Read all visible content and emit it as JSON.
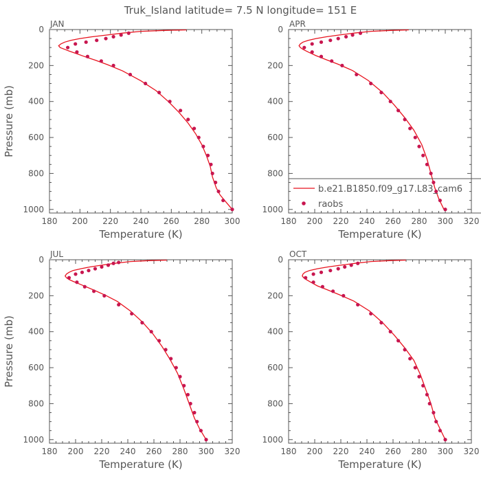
{
  "figure": {
    "title": "Truk_Island  latitude= 7.5 N longitude= 151 E"
  },
  "colors": {
    "model": "#e8121d",
    "obs": "#c8164f",
    "axis": "#555555",
    "text": "#555555",
    "background": "#ffffff"
  },
  "legend": {
    "model_label": "b.e21.B1850.f09_g17.L83_cam6",
    "obs_label": "raobs",
    "placement": "bottom-right of APR panel"
  },
  "chart_data": [
    {
      "type": "line",
      "panel": "JAN",
      "xlabel": "Temperature (K)",
      "ylabel": "Pressure (mb)",
      "xlim": [
        180,
        300
      ],
      "xticks": [
        180,
        200,
        220,
        240,
        260,
        280,
        300
      ],
      "ylim": [
        1020,
        0
      ],
      "yticks": [
        0,
        200,
        400,
        600,
        800,
        1000
      ],
      "grid": false,
      "series": [
        {
          "kind": "model",
          "points": [
            [
              270,
              2
            ],
            [
              255,
              5
            ],
            [
              240,
              10
            ],
            [
              228,
              20
            ],
            [
              218,
              30
            ],
            [
              208,
              40
            ],
            [
              200,
              50
            ],
            [
              194,
              60
            ],
            [
              190,
              70
            ],
            [
              187.5,
              80
            ],
            [
              186,
              90
            ],
            [
              187,
              100
            ],
            [
              190,
              110
            ],
            [
              193,
              120
            ],
            [
              198,
              135
            ],
            [
              203,
              150
            ],
            [
              210,
              170
            ],
            [
              218,
              195
            ],
            [
              228,
              230
            ],
            [
              240,
              285
            ],
            [
              250,
              340
            ],
            [
              258,
              400
            ],
            [
              265,
              460
            ],
            [
              271,
              520
            ],
            [
              276,
              580
            ],
            [
              280,
              640
            ],
            [
              283,
              700
            ],
            [
              285.5,
              760
            ],
            [
              287,
              820
            ],
            [
              289.5,
              880
            ],
            [
              292,
              920
            ],
            [
              296,
              960
            ],
            [
              300,
              1000
            ]
          ]
        },
        {
          "kind": "obs",
          "points": [
            [
              232,
              20
            ],
            [
              227,
              30
            ],
            [
              222,
              40
            ],
            [
              217,
              50
            ],
            [
              211,
              60
            ],
            [
              204,
              70
            ],
            [
              197,
              80
            ],
            [
              192,
              100
            ],
            [
              198,
              125
            ],
            [
              205,
              150
            ],
            [
              214,
              175
            ],
            [
              222,
              200
            ],
            [
              233,
              250
            ],
            [
              243,
              300
            ],
            [
              252,
              350
            ],
            [
              259,
              400
            ],
            [
              266,
              450
            ],
            [
              271,
              500
            ],
            [
              275,
              550
            ],
            [
              278,
              600
            ],
            [
              281,
              650
            ],
            [
              284,
              700
            ],
            [
              286,
              750
            ],
            [
              287,
              800
            ],
            [
              289,
              850
            ],
            [
              291,
              900
            ],
            [
              294,
              950
            ],
            [
              300,
              1000
            ]
          ]
        }
      ]
    },
    {
      "type": "line",
      "panel": "APR",
      "xlabel": "Temperature (K)",
      "ylabel": "",
      "xlim": [
        180,
        320
      ],
      "xticks": [
        180,
        200,
        220,
        240,
        260,
        280,
        300,
        320
      ],
      "ylim": [
        1020,
        0
      ],
      "yticks": [
        0,
        200,
        400,
        600,
        800,
        1000
      ],
      "grid": false,
      "series": [
        {
          "kind": "model",
          "points": [
            [
              272,
              2
            ],
            [
              258,
              5
            ],
            [
              243,
              10
            ],
            [
              230,
              20
            ],
            [
              219,
              30
            ],
            [
              209,
              40
            ],
            [
              201,
              50
            ],
            [
              195,
              60
            ],
            [
              191,
              70
            ],
            [
              189,
              80
            ],
            [
              188,
              90
            ],
            [
              189,
              100
            ],
            [
              191,
              110
            ],
            [
              195,
              125
            ],
            [
              201,
              145
            ],
            [
              209,
              168
            ],
            [
              218,
              193
            ],
            [
              229,
              228
            ],
            [
              241,
              283
            ],
            [
              252,
              350
            ],
            [
              261,
              420
            ],
            [
              269,
              490
            ],
            [
              276,
              560
            ],
            [
              282,
              640
            ],
            [
              286,
              720
            ],
            [
              289,
              800
            ],
            [
              292,
              880
            ],
            [
              295,
              940
            ],
            [
              299,
              1000
            ]
          ]
        },
        {
          "kind": "obs",
          "points": [
            [
              235,
              20
            ],
            [
              229,
              30
            ],
            [
              224,
              40
            ],
            [
              218,
              50
            ],
            [
              212,
              60
            ],
            [
              205,
              70
            ],
            [
              198,
              80
            ],
            [
              192,
              100
            ],
            [
              198,
              125
            ],
            [
              205,
              150
            ],
            [
              213,
              175
            ],
            [
              221,
              200
            ],
            [
              232,
              250
            ],
            [
              243,
              300
            ],
            [
              251,
              350
            ],
            [
              258,
              400
            ],
            [
              264,
              450
            ],
            [
              269,
              500
            ],
            [
              273,
              550
            ],
            [
              277,
              600
            ],
            [
              280,
              650
            ],
            [
              283,
              700
            ],
            [
              286,
              750
            ],
            [
              289,
              800
            ],
            [
              291,
              850
            ],
            [
              293,
              900
            ],
            [
              296,
              950
            ],
            [
              300,
              1000
            ]
          ]
        }
      ]
    },
    {
      "type": "line",
      "panel": "JUL",
      "xlabel": "Temperature (K)",
      "ylabel": "Pressure (mb)",
      "xlim": [
        180,
        320
      ],
      "xticks": [
        180,
        200,
        220,
        240,
        260,
        280,
        300,
        320
      ],
      "ylim": [
        1020,
        0
      ],
      "yticks": [
        0,
        200,
        400,
        600,
        800,
        1000
      ],
      "grid": false,
      "series": [
        {
          "kind": "model",
          "points": [
            [
              270,
              2
            ],
            [
              256,
              5
            ],
            [
              242,
              10
            ],
            [
              230,
              20
            ],
            [
              220,
              30
            ],
            [
              211,
              40
            ],
            [
              204,
              50
            ],
            [
              198,
              60
            ],
            [
              195,
              70
            ],
            [
              193,
              80
            ],
            [
              192,
              90
            ],
            [
              193,
              100
            ],
            [
              195,
              110
            ],
            [
              198,
              120
            ],
            [
              203,
              135
            ],
            [
              208,
              150
            ],
            [
              215,
              172
            ],
            [
              223,
              198
            ],
            [
              232,
              232
            ],
            [
              242,
              285
            ],
            [
              251,
              345
            ],
            [
              259,
              410
            ],
            [
              266,
              480
            ],
            [
              272,
              550
            ],
            [
              278,
              630
            ],
            [
              283,
              720
            ],
            [
              287,
              800
            ],
            [
              291,
              880
            ],
            [
              295,
              940
            ],
            [
              300,
              1000
            ]
          ]
        },
        {
          "kind": "obs",
          "points": [
            [
              233,
              15
            ],
            [
              229,
              20
            ],
            [
              225,
              30
            ],
            [
              220,
              40
            ],
            [
              215,
              50
            ],
            [
              210,
              60
            ],
            [
              205,
              70
            ],
            [
              200,
              80
            ],
            [
              195,
              100
            ],
            [
              201,
              125
            ],
            [
              207,
              150
            ],
            [
              214,
              175
            ],
            [
              222,
              200
            ],
            [
              233,
              250
            ],
            [
              243,
              300
            ],
            [
              251,
              350
            ],
            [
              258,
              400
            ],
            [
              264,
              450
            ],
            [
              269,
              500
            ],
            [
              273,
              550
            ],
            [
              277,
              600
            ],
            [
              280,
              650
            ],
            [
              283,
              700
            ],
            [
              286,
              750
            ],
            [
              288,
              800
            ],
            [
              291,
              850
            ],
            [
              293,
              900
            ],
            [
              296,
              950
            ],
            [
              300,
              1000
            ]
          ]
        }
      ]
    },
    {
      "type": "line",
      "panel": "OCT",
      "xlabel": "Temperature (K)",
      "ylabel": "",
      "xlim": [
        180,
        320
      ],
      "xticks": [
        180,
        200,
        220,
        240,
        260,
        280,
        300,
        320
      ],
      "ylim": [
        1020,
        0
      ],
      "yticks": [
        0,
        200,
        400,
        600,
        800,
        1000
      ],
      "grid": false,
      "series": [
        {
          "kind": "model",
          "points": [
            [
              270,
              2
            ],
            [
              257,
              5
            ],
            [
              243,
              10
            ],
            [
              231,
              20
            ],
            [
              220,
              30
            ],
            [
              210,
              40
            ],
            [
              202,
              50
            ],
            [
              196,
              60
            ],
            [
              192.5,
              70
            ],
            [
              191,
              80
            ],
            [
              190.5,
              90
            ],
            [
              191.5,
              100
            ],
            [
              193.5,
              110
            ],
            [
              197,
              125
            ],
            [
              202,
              145
            ],
            [
              210,
              168
            ],
            [
              219,
              195
            ],
            [
              230,
              230
            ],
            [
              242,
              285
            ],
            [
              252,
              350
            ],
            [
              261,
              420
            ],
            [
              269,
              490
            ],
            [
              276,
              560
            ],
            [
              281,
              640
            ],
            [
              285,
              720
            ],
            [
              289,
              800
            ],
            [
              292,
              880
            ],
            [
              296,
              940
            ],
            [
              300,
              1000
            ]
          ]
        },
        {
          "kind": "obs",
          "points": [
            [
              233,
              20
            ],
            [
              228,
              30
            ],
            [
              223,
              40
            ],
            [
              218,
              50
            ],
            [
              212,
              60
            ],
            [
              205,
              70
            ],
            [
              199,
              80
            ],
            [
              193,
              100
            ],
            [
              199,
              125
            ],
            [
              206,
              150
            ],
            [
              214,
              175
            ],
            [
              222,
              200
            ],
            [
              233,
              250
            ],
            [
              243,
              300
            ],
            [
              251,
              350
            ],
            [
              258,
              400
            ],
            [
              264,
              450
            ],
            [
              269,
              500
            ],
            [
              273,
              550
            ],
            [
              277,
              600
            ],
            [
              280,
              650
            ],
            [
              283,
              700
            ],
            [
              286,
              750
            ],
            [
              288,
              800
            ],
            [
              291,
              850
            ],
            [
              293,
              900
            ],
            [
              296,
              950
            ],
            [
              300,
              1000
            ]
          ]
        }
      ]
    }
  ]
}
